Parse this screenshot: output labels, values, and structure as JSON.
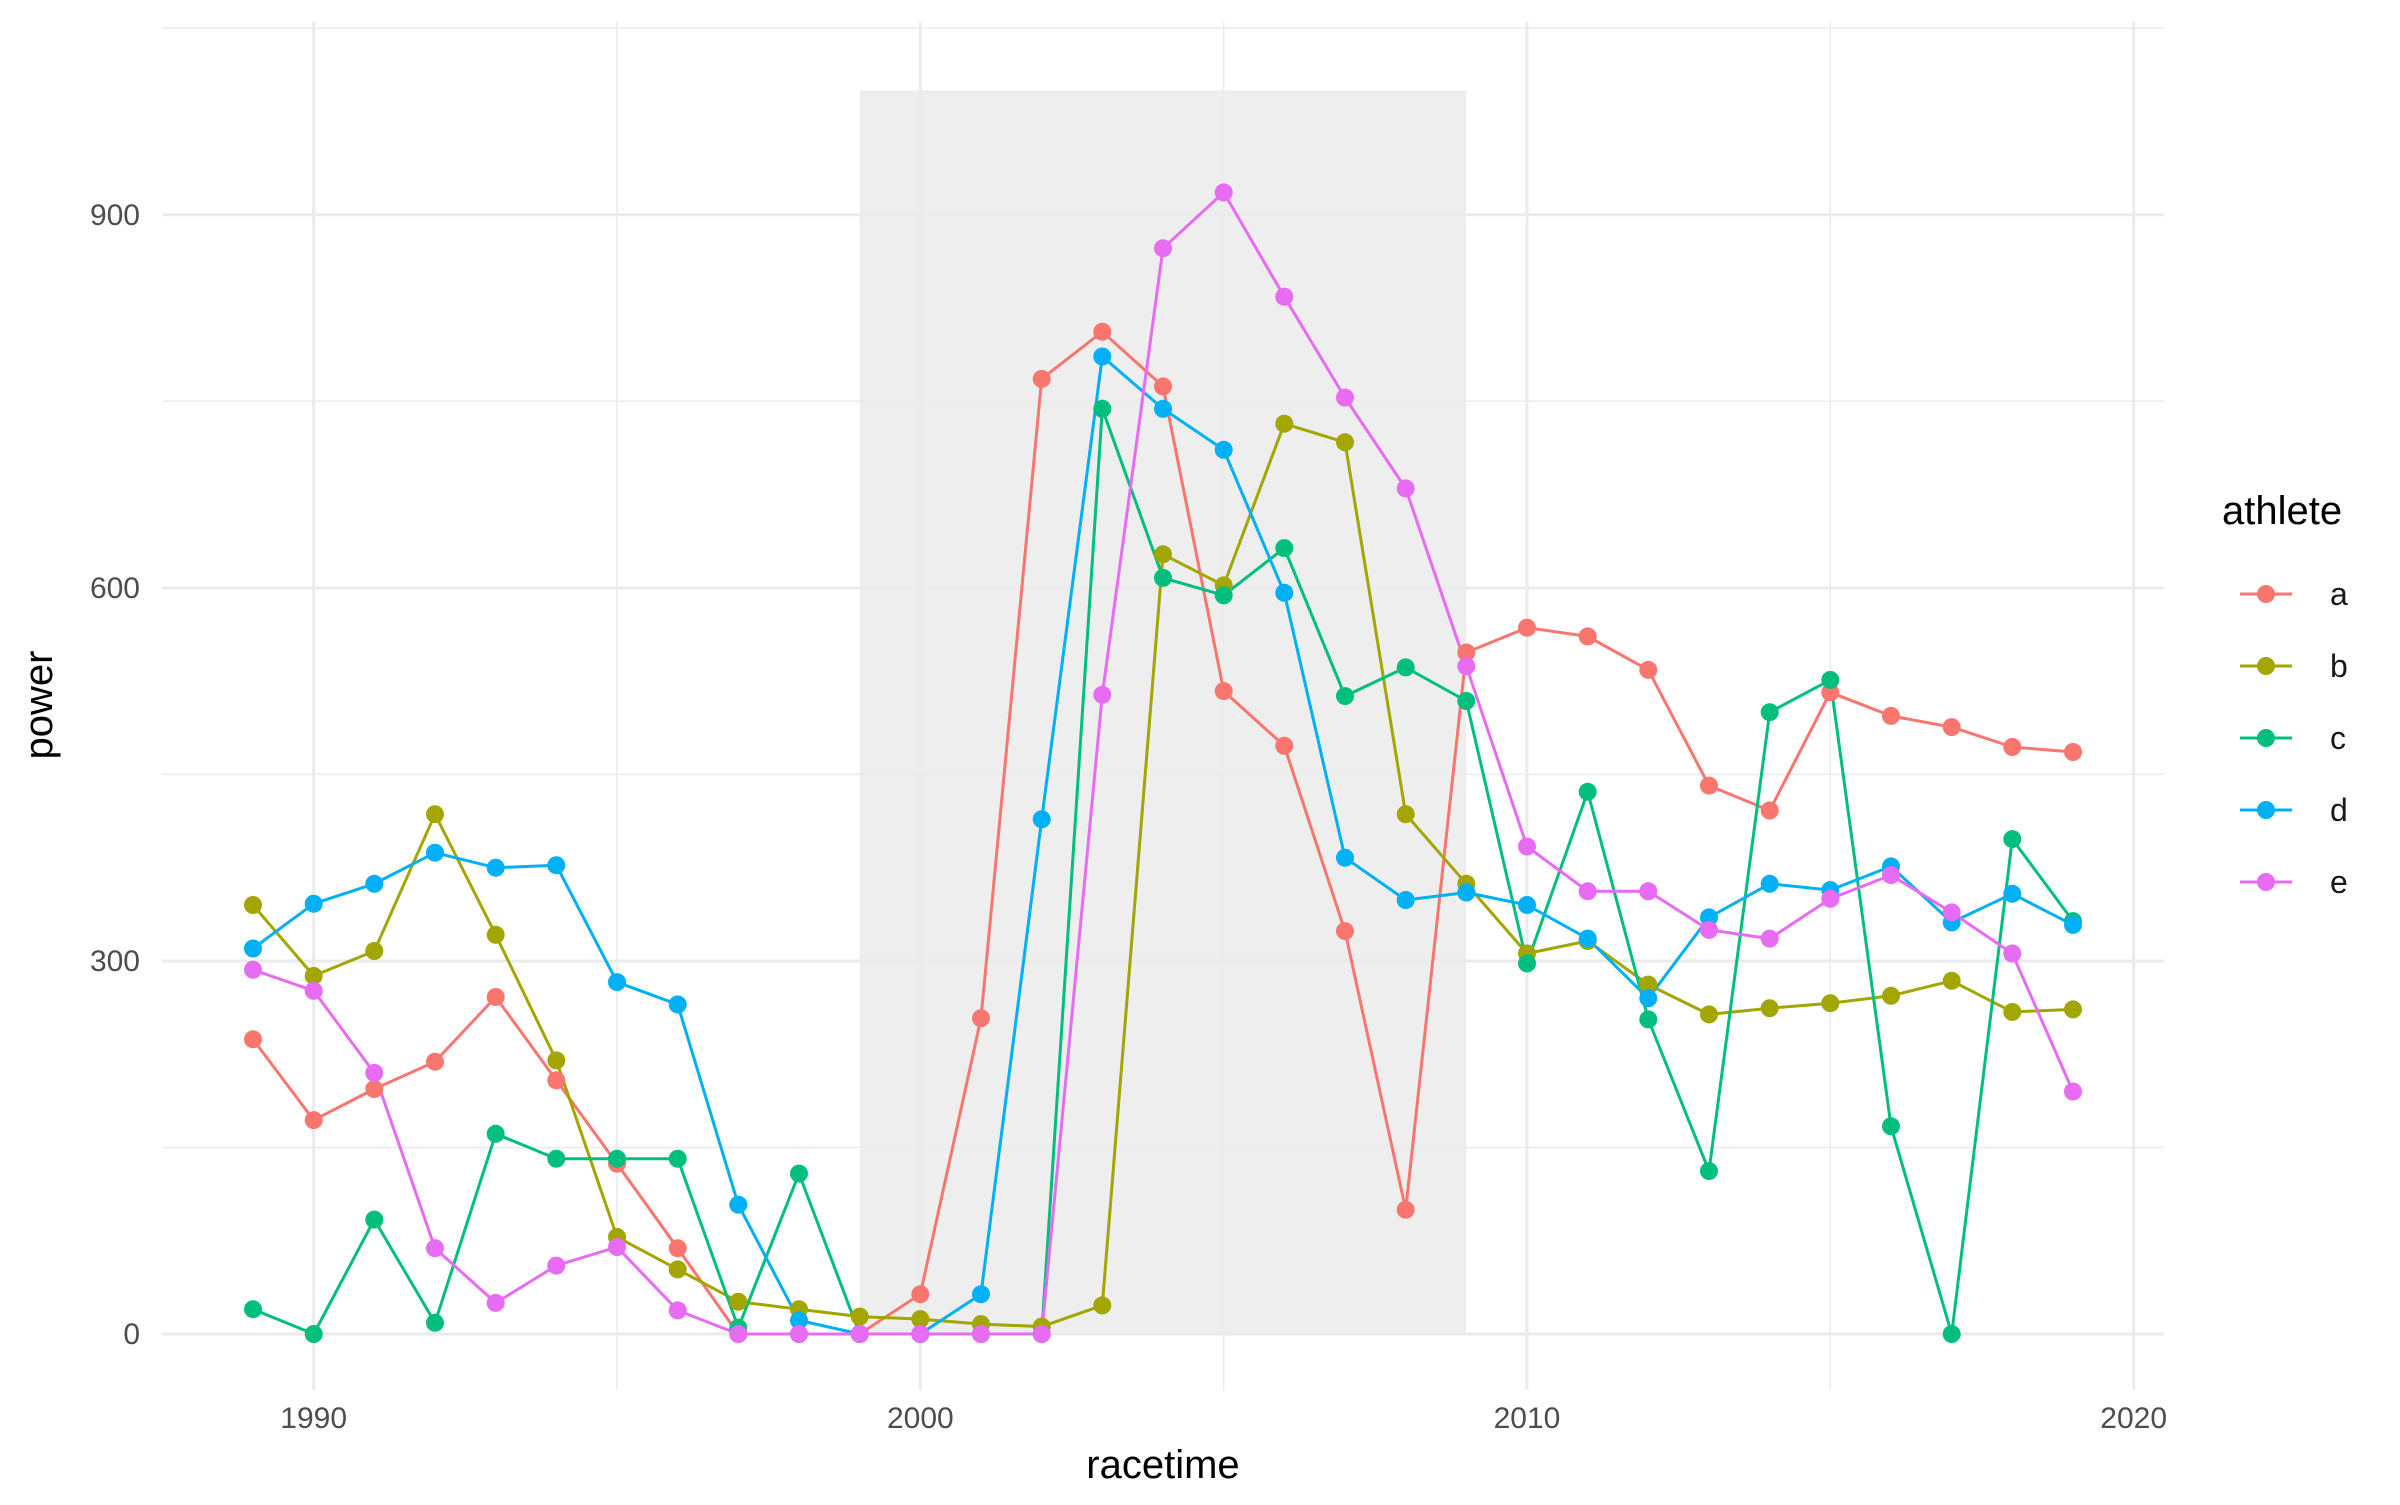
{
  "chart_data": {
    "type": "line",
    "xlabel": "racetime",
    "ylabel": "power",
    "xlim": [
      1987.5,
      2020.5
    ],
    "ylim": [
      -45,
      1055
    ],
    "x_major_ticks": [
      1990,
      2000,
      2010,
      2020
    ],
    "x_minor_ticks": [
      1995,
      2005,
      2015
    ],
    "y_major_ticks": [
      0,
      300,
      600,
      900
    ],
    "y_minor_ticks": [
      150,
      450,
      750,
      1050
    ],
    "x_tick_labels": [
      "1990",
      "2000",
      "2010",
      "2020"
    ],
    "y_tick_labels": [
      "0",
      "300",
      "600",
      "900"
    ],
    "grid": true,
    "highlight_region": {
      "x": [
        1999,
        2009
      ],
      "y": [
        0,
        1000
      ],
      "color": "#ebebeb"
    },
    "legend": {
      "title": "athlete",
      "position": "right"
    },
    "x": [
      1989,
      1990,
      1991,
      1992,
      1993,
      1994,
      1995,
      1996,
      1997,
      1998,
      1999,
      2000,
      2001,
      2002,
      2003,
      2004,
      2005,
      2006,
      2007,
      2008,
      2009,
      2010,
      2011,
      2012,
      2013,
      2014,
      2015,
      2016,
      2017,
      2018,
      2019
    ],
    "series": [
      {
        "name": "a",
        "color": "#F8766D",
        "values": [
          237,
          172,
          197,
          219,
          271,
          204,
          137,
          69,
          0,
          0,
          0,
          32,
          254,
          768,
          806,
          762,
          517,
          473,
          324,
          100,
          548,
          568,
          561,
          534,
          441,
          421,
          516,
          497,
          488,
          472,
          468
        ]
      },
      {
        "name": "b",
        "color": "#A3A500",
        "values": [
          345,
          288,
          308,
          418,
          321,
          220,
          78,
          52,
          26,
          20,
          14,
          12,
          8,
          6,
          23,
          627,
          602,
          732,
          717,
          418,
          362,
          306,
          316,
          281,
          257,
          262,
          266,
          272,
          284,
          259,
          261
        ]
      },
      {
        "name": "c",
        "color": "#00BF7D",
        "values": [
          20,
          0,
          92,
          9,
          161,
          141,
          141,
          141,
          5,
          129,
          0,
          0,
          0,
          0,
          744,
          608,
          594,
          632,
          513,
          536,
          509,
          298,
          436,
          253,
          131,
          500,
          526,
          167,
          0,
          398,
          332
        ]
      },
      {
        "name": "d",
        "color": "#00B0F6",
        "values": [
          310,
          346,
          362,
          387,
          375,
          377,
          283,
          265,
          104,
          11,
          0,
          0,
          32,
          414,
          786,
          744,
          711,
          596,
          383,
          349,
          355,
          345,
          318,
          270,
          335,
          362,
          357,
          376,
          331,
          354,
          329
        ]
      },
      {
        "name": "e",
        "color": "#E76BF3",
        "values": [
          293,
          276,
          210,
          69,
          25,
          55,
          70,
          19,
          0,
          0,
          0,
          0,
          0,
          0,
          514,
          873,
          918,
          834,
          753,
          680,
          537,
          392,
          356,
          356,
          325,
          318,
          350,
          369,
          339,
          306,
          195
        ]
      }
    ]
  }
}
